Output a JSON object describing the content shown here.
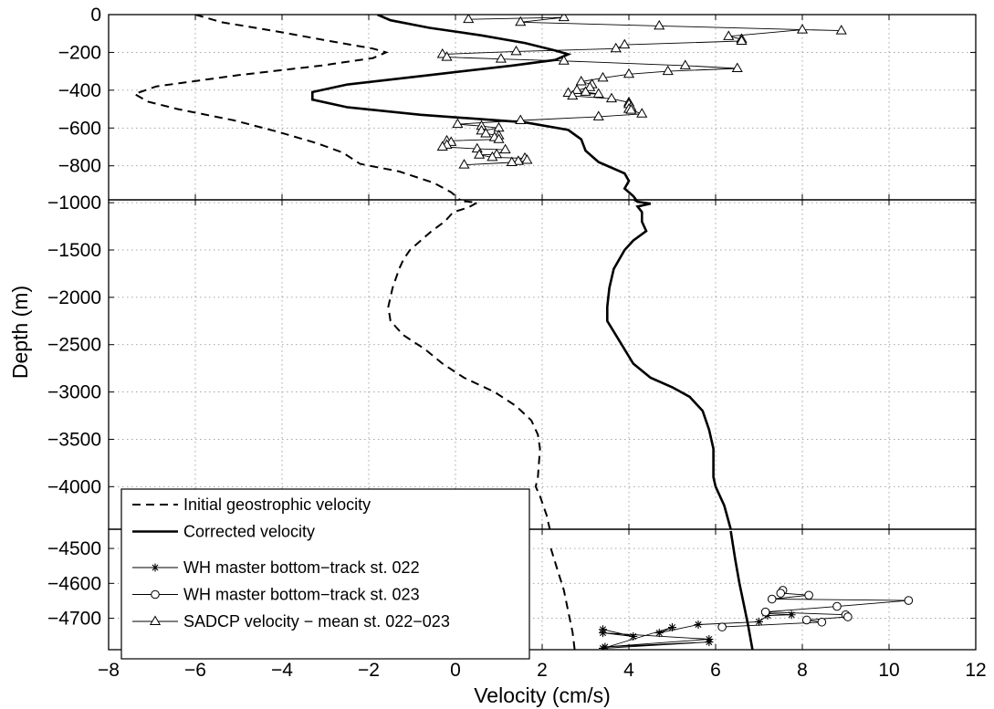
{
  "chart_data": {
    "type": "line",
    "xlabel": "Velocity (cm/s)",
    "ylabel": "Depth (m)",
    "xlim": [
      -8,
      12
    ],
    "x_ticks": [
      -8,
      -6,
      -4,
      -2,
      0,
      2,
      4,
      6,
      8,
      10,
      12
    ],
    "grid": true,
    "legend_position": "bottom-left",
    "panels": [
      {
        "name": "top",
        "ylim": [
          -980,
          0
        ],
        "y_ticks": [
          0,
          -200,
          -400,
          -600,
          -800
        ]
      },
      {
        "name": "middle",
        "ylim": [
          -4450,
          -970
        ],
        "y_ticks": [
          -1000,
          -1500,
          -2000,
          -2500,
          -3000,
          -3500,
          -4000
        ]
      },
      {
        "name": "bottom",
        "ylim": [
          -4790,
          -4445
        ],
        "y_ticks": [
          -4500,
          -4600,
          -4700
        ]
      }
    ],
    "series": [
      {
        "name": "Initial geostrophic velocity",
        "style": "dashed",
        "points": [
          [
            -6.0,
            0
          ],
          [
            -5.4,
            -40
          ],
          [
            -4.1,
            -90
          ],
          [
            -2.9,
            -140
          ],
          [
            -1.9,
            -180
          ],
          [
            -1.6,
            -200
          ],
          [
            -1.9,
            -230
          ],
          [
            -3.1,
            -270
          ],
          [
            -5.0,
            -320
          ],
          [
            -6.9,
            -380
          ],
          [
            -7.4,
            -420
          ],
          [
            -7.1,
            -460
          ],
          [
            -6.4,
            -500
          ],
          [
            -5.1,
            -560
          ],
          [
            -4.1,
            -620
          ],
          [
            -3.2,
            -680
          ],
          [
            -2.6,
            -730
          ],
          [
            -2.2,
            -790
          ],
          [
            -1.3,
            -830
          ],
          [
            -0.5,
            -890
          ],
          [
            -0.1,
            -940
          ],
          [
            0.1,
            -980
          ],
          [
            0.5,
            -1000
          ],
          [
            0.3,
            -1050
          ],
          [
            -0.05,
            -1100
          ],
          [
            -0.25,
            -1200
          ],
          [
            -0.55,
            -1300
          ],
          [
            -0.8,
            -1400
          ],
          [
            -1.05,
            -1500
          ],
          [
            -1.2,
            -1600
          ],
          [
            -1.3,
            -1700
          ],
          [
            -1.45,
            -1900
          ],
          [
            -1.55,
            -2100
          ],
          [
            -1.5,
            -2250
          ],
          [
            -1.2,
            -2400
          ],
          [
            -0.7,
            -2550
          ],
          [
            -0.3,
            -2700
          ],
          [
            0.2,
            -2850
          ],
          [
            0.9,
            -3000
          ],
          [
            1.4,
            -3150
          ],
          [
            1.75,
            -3300
          ],
          [
            1.9,
            -3450
          ],
          [
            1.95,
            -3600
          ],
          [
            1.9,
            -3900
          ],
          [
            1.85,
            -4000
          ],
          [
            1.95,
            -4100
          ],
          [
            2.1,
            -4300
          ],
          [
            2.2,
            -4500
          ],
          [
            2.35,
            -4560
          ],
          [
            2.5,
            -4620
          ],
          [
            2.6,
            -4680
          ],
          [
            2.7,
            -4740
          ],
          [
            2.75,
            -4790
          ]
        ]
      },
      {
        "name": "Corrected velocity",
        "style": "solid",
        "points": [
          [
            -1.8,
            0
          ],
          [
            -1.5,
            -30
          ],
          [
            -0.6,
            -70
          ],
          [
            0.6,
            -110
          ],
          [
            1.6,
            -150
          ],
          [
            2.3,
            -190
          ],
          [
            2.6,
            -210
          ],
          [
            2.3,
            -240
          ],
          [
            1.3,
            -270
          ],
          [
            -0.6,
            -320
          ],
          [
            -2.5,
            -370
          ],
          [
            -3.3,
            -410
          ],
          [
            -3.3,
            -450
          ],
          [
            -2.5,
            -490
          ],
          [
            -0.8,
            -530
          ],
          [
            1.6,
            -570
          ],
          [
            2.6,
            -610
          ],
          [
            2.9,
            -660
          ],
          [
            3.0,
            -720
          ],
          [
            3.3,
            -780
          ],
          [
            3.9,
            -840
          ],
          [
            4.0,
            -880
          ],
          [
            3.9,
            -920
          ],
          [
            4.1,
            -960
          ],
          [
            4.2,
            -990
          ],
          [
            4.5,
            -1010
          ],
          [
            4.2,
            -1040
          ],
          [
            4.3,
            -1100
          ],
          [
            4.3,
            -1200
          ],
          [
            4.4,
            -1300
          ],
          [
            4.1,
            -1400
          ],
          [
            3.9,
            -1500
          ],
          [
            3.65,
            -1700
          ],
          [
            3.55,
            -1900
          ],
          [
            3.5,
            -2100
          ],
          [
            3.5,
            -2250
          ],
          [
            3.7,
            -2400
          ],
          [
            3.9,
            -2550
          ],
          [
            4.1,
            -2700
          ],
          [
            4.5,
            -2850
          ],
          [
            5.0,
            -2950
          ],
          [
            5.4,
            -3050
          ],
          [
            5.7,
            -3200
          ],
          [
            5.85,
            -3400
          ],
          [
            5.95,
            -3600
          ],
          [
            5.95,
            -3900
          ],
          [
            6.0,
            -4000
          ],
          [
            6.2,
            -4200
          ],
          [
            6.35,
            -4450
          ],
          [
            6.45,
            -4530
          ],
          [
            6.55,
            -4600
          ],
          [
            6.65,
            -4660
          ],
          [
            6.75,
            -4720
          ],
          [
            6.85,
            -4790
          ]
        ]
      },
      {
        "name": "WH master bottom−track st. 022",
        "style": "marker-star",
        "points": [
          [
            3.4,
            -4732
          ],
          [
            4.1,
            -4752
          ],
          [
            3.4,
            -4742
          ],
          [
            5.85,
            -4760
          ],
          [
            3.45,
            -4782
          ],
          [
            5.85,
            -4768
          ],
          [
            3.4,
            -4786
          ],
          [
            5.0,
            -4726
          ],
          [
            4.7,
            -4742
          ],
          [
            5.6,
            -4718
          ],
          [
            7.0,
            -4710
          ],
          [
            7.2,
            -4692
          ],
          [
            7.75,
            -4690
          ],
          [
            7.15,
            -4686
          ]
        ]
      },
      {
        "name": "WH master bottom−track st. 023",
        "style": "marker-circle",
        "points": [
          [
            7.55,
            -4620
          ],
          [
            7.5,
            -4628
          ],
          [
            8.15,
            -4634
          ],
          [
            7.3,
            -4645
          ],
          [
            10.45,
            -4649
          ],
          [
            8.8,
            -4666
          ],
          [
            7.15,
            -4682
          ],
          [
            9.0,
            -4690
          ],
          [
            9.05,
            -4696
          ],
          [
            8.1,
            -4705
          ],
          [
            8.45,
            -4711
          ],
          [
            6.15,
            -4725
          ]
        ]
      },
      {
        "name": "SADCP velocity − mean st. 022−023",
        "style": "marker-triangle",
        "points": [
          [
            0.3,
            -25
          ],
          [
            2.5,
            -15
          ],
          [
            1.5,
            -40
          ],
          [
            4.7,
            -60
          ],
          [
            8.9,
            -85
          ],
          [
            8.0,
            -80
          ],
          [
            6.3,
            -115
          ],
          [
            6.6,
            -130
          ],
          [
            6.6,
            -140
          ],
          [
            3.9,
            -160
          ],
          [
            3.7,
            -180
          ],
          [
            1.4,
            -195
          ],
          [
            -0.3,
            -210
          ],
          [
            -0.2,
            -225
          ],
          [
            1.05,
            -235
          ],
          [
            2.5,
            -245
          ],
          [
            5.3,
            -270
          ],
          [
            6.5,
            -285
          ],
          [
            4.9,
            -300
          ],
          [
            4.0,
            -315
          ],
          [
            3.4,
            -335
          ],
          [
            2.9,
            -355
          ],
          [
            3.15,
            -370
          ],
          [
            3.1,
            -385
          ],
          [
            2.8,
            -400
          ],
          [
            3.0,
            -410
          ],
          [
            3.3,
            -420
          ],
          [
            2.6,
            -415
          ],
          [
            2.7,
            -430
          ],
          [
            3.6,
            -445
          ],
          [
            4.0,
            -465
          ],
          [
            4.0,
            -475
          ],
          [
            4.05,
            -490
          ],
          [
            4.0,
            -500
          ],
          [
            4.05,
            -505
          ],
          [
            4.3,
            -525
          ],
          [
            3.3,
            -540
          ],
          [
            1.5,
            -560
          ],
          [
            0.05,
            -580
          ],
          [
            0.6,
            -590
          ],
          [
            1.0,
            -600
          ],
          [
            0.6,
            -615
          ],
          [
            0.7,
            -630
          ],
          [
            1.0,
            -640
          ],
          [
            0.9,
            -650
          ],
          [
            1.0,
            -660
          ],
          [
            -0.2,
            -668
          ],
          [
            -0.1,
            -675
          ],
          [
            -0.2,
            -690
          ],
          [
            -0.3,
            -700
          ],
          [
            0.5,
            -710
          ],
          [
            1.15,
            -715
          ],
          [
            0.95,
            -740
          ],
          [
            0.55,
            -742
          ],
          [
            0.85,
            -755
          ],
          [
            1.6,
            -760
          ],
          [
            1.65,
            -770
          ],
          [
            1.45,
            -776
          ],
          [
            1.3,
            -782
          ],
          [
            0.2,
            -795
          ]
        ]
      }
    ]
  }
}
